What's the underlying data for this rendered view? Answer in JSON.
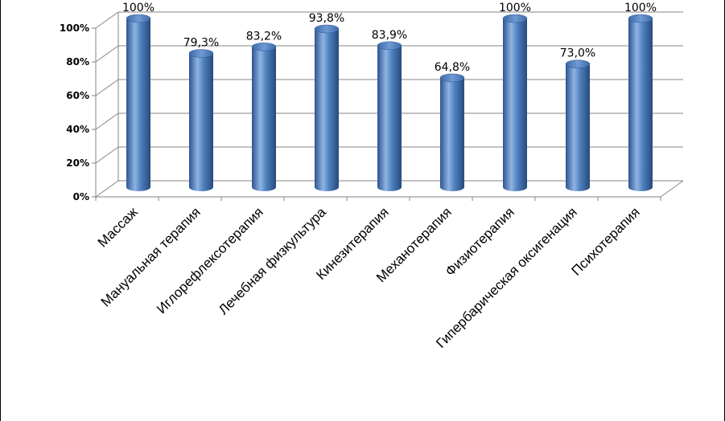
{
  "chart_data": {
    "type": "bar",
    "style": "3d-cylinder",
    "colors": {
      "bar": "#4f81bd",
      "bar_dark": "#2c5691",
      "bar_light": "#8fb3e3",
      "grid": "#868686"
    },
    "grid": true,
    "legend": "none",
    "ylim": [
      0,
      100
    ],
    "y_ticks": [
      "0%",
      "20%",
      "40%",
      "60%",
      "80%",
      "100%"
    ],
    "categories": [
      "Массаж",
      "Мануальная терапия",
      "Иглорефлексотерапия",
      "Лечебная физкультура",
      "Кинезитерапия",
      "Механотерапия",
      "Физиотерапия",
      "Гипербарическая оксигенация",
      "Психотерапия"
    ],
    "values": [
      100,
      79.3,
      83.2,
      93.8,
      83.9,
      64.8,
      100,
      73.0,
      100
    ],
    "value_labels": [
      "100%",
      "79,3%",
      "83,2%",
      "93,8%",
      "83,9%",
      "64,8%",
      "100%",
      "73,0%",
      "100%"
    ]
  }
}
